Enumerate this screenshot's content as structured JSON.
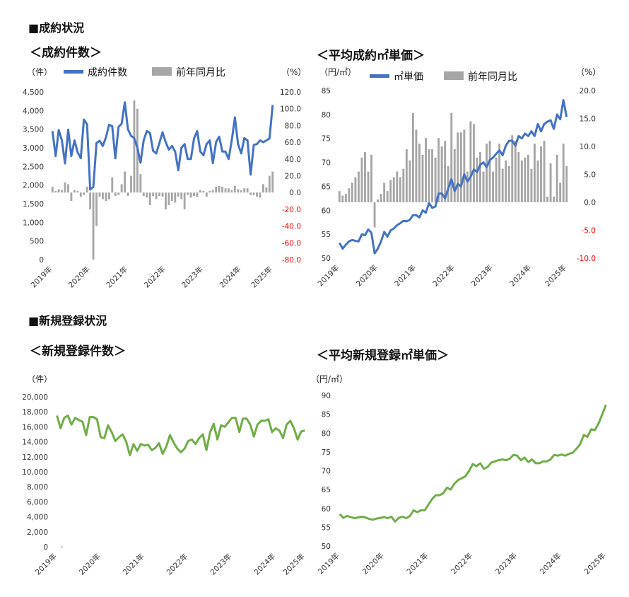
{
  "sections": {
    "contracts": "■成約状況",
    "registrations": "■新規登録状況"
  },
  "chart_data": [
    {
      "id": "c1",
      "type": "bar+line",
      "title": "＜成約件数＞",
      "left_unit": "（件）",
      "right_unit": "（%）",
      "legend": [
        "成約件数",
        "前年同月比"
      ],
      "line_color": "#4472C4",
      "bar_color": "#A6A6A6",
      "y_left": [
        0,
        4500
      ],
      "y_left_ticks": [
        "0",
        "500",
        "1,000",
        "1,500",
        "2,000",
        "2,500",
        "3,000",
        "3,500",
        "4,000",
        "4,500"
      ],
      "y_right": [
        -80,
        120
      ],
      "y_right_ticks": [
        "120.0",
        "100.0",
        "80.0",
        "60.0",
        "40.0",
        "20.0",
        "0.0",
        "-20.0",
        "-40.0",
        "-60.0",
        "-80.0"
      ],
      "negative_tick_color": "#FF0000",
      "x_labels": [
        "2019年",
        "2020年",
        "2021年",
        "2022年",
        "2023年",
        "2024年",
        "2025年"
      ],
      "start_month": 1,
      "line_values": [
        3450,
        2780,
        3480,
        3200,
        2580,
        3490,
        2780,
        3200,
        2880,
        2720,
        3760,
        3630,
        1880,
        1950,
        3130,
        3190,
        3050,
        3280,
        3620,
        3580,
        2720,
        3560,
        3650,
        4220,
        3500,
        3320,
        3260,
        3000,
        2600,
        3200,
        3450,
        3400,
        2920,
        2850,
        3130,
        3420,
        3150,
        2950,
        3050,
        2900,
        2400,
        3000,
        3100,
        2700,
        2700,
        3250,
        3450,
        2900,
        2800,
        3100,
        3200,
        2590,
        3150,
        3300,
        2900,
        2900,
        2700,
        3200,
        3820,
        3100,
        2850,
        3260,
        3200,
        2280,
        3080,
        3100,
        3200,
        3150,
        3200,
        3250,
        4150
      ],
      "bar_values": [
        7,
        2,
        4,
        3,
        12,
        10,
        -10,
        3,
        2,
        -5,
        -3,
        7,
        -20,
        -80,
        -40,
        -5,
        -8,
        -10,
        -8,
        18,
        -4,
        -3,
        10,
        25,
        -4,
        20,
        110,
        100,
        22,
        -4,
        -6,
        -15,
        -4,
        -8,
        -4,
        -5,
        -20,
        -15,
        -10,
        -12,
        -5,
        -8,
        -20,
        -3,
        -6,
        -4,
        -5,
        3,
        2,
        -5,
        2,
        3,
        7,
        8,
        7,
        5,
        5,
        3,
        8,
        4,
        3,
        5,
        5,
        -3,
        -3,
        -5,
        -6,
        10,
        6,
        20,
        25
      ]
    },
    {
      "id": "c2",
      "type": "bar+line",
      "title": "＜平均成約㎡単価＞",
      "left_unit": "（円/㎡）",
      "right_unit": "（%）",
      "legend": [
        "㎡単価",
        "前年同月比"
      ],
      "line_color": "#4472C4",
      "bar_color": "#A6A6A6",
      "y_left": [
        50,
        85
      ],
      "y_left_ticks": [
        "85",
        "80",
        "75",
        "70",
        "65",
        "60",
        "55",
        "50"
      ],
      "y_right": [
        -10,
        20
      ],
      "y_right_ticks": [
        "20.0",
        "15.0",
        "10.0",
        "5.0",
        "0.0",
        "-5.0",
        "-10.0"
      ],
      "negative_tick_color": "#FF0000",
      "x_labels": [
        "2019年",
        "2020年",
        "2021年",
        "2022年",
        "2023年",
        "2024年",
        "2025年"
      ],
      "start_month": 1,
      "line_values": [
        53.2,
        52.0,
        52.8,
        53.5,
        53.8,
        53.6,
        53.5,
        55.0,
        54.8,
        56.0,
        55.3,
        51.0,
        52.0,
        53.5,
        55.5,
        54.5,
        55.8,
        56.2,
        56.9,
        57.3,
        57.8,
        57.7,
        58.0,
        59.0,
        59.0,
        58.5,
        60.0,
        59.5,
        61.5,
        60.5,
        60.8,
        63.5,
        63.5,
        62.5,
        64.5,
        66.5,
        64.0,
        65.5,
        65.0,
        67.5,
        66.0,
        67.0,
        68.5,
        68.0,
        69.5,
        70.0,
        69.0,
        70.5,
        71.0,
        71.8,
        72.5,
        71.5,
        73.5,
        74.5,
        74.5,
        73.5,
        75.5,
        75.0,
        76.0,
        75.5,
        76.5,
        75.5,
        78.0,
        76.5,
        78.0,
        78.5,
        78.8,
        77.0,
        80.0,
        79.0,
        83.0,
        79.5
      ],
      "bar_values": [
        2.0,
        1.2,
        1.5,
        2.5,
        3.5,
        4.5,
        5.5,
        8.0,
        9.0,
        5.5,
        8.5,
        -4.5,
        0.5,
        1.5,
        3.5,
        2.0,
        4.0,
        4.5,
        5.5,
        4.5,
        6.0,
        9.5,
        7.5,
        16.0,
        13.0,
        10.5,
        8.5,
        11.5,
        9.5,
        9.5,
        8.0,
        11.5,
        10.0,
        11.0,
        6.5,
        16.0,
        9.5,
        12.5,
        12.5,
        13.0,
        5.5,
        14.5,
        14.0,
        8.0,
        9.0,
        5.5,
        10.5,
        11.0,
        5.5,
        8.0,
        10.5,
        6.0,
        7.5,
        6.5,
        12.0,
        11.0,
        9.0,
        7.5,
        8.0,
        8.5,
        6.0,
        10.5,
        7.5,
        10.0,
        11.0,
        1.0,
        7.0,
        1.0,
        8.5,
        3.5,
        10.5,
        6.5
      ],
      "unit_labels_note": ""
    },
    {
      "id": "c3",
      "type": "line",
      "title": "＜新規登録件数＞",
      "left_unit": "（件）",
      "line_color": "#70AD47",
      "y_left": [
        0,
        20000
      ],
      "y_left_ticks": [
        "20,000",
        "18,000",
        "16,000",
        "14,000",
        "12,000",
        "10,000",
        "8,000",
        "6,000",
        "4,000",
        "2,000",
        "0"
      ],
      "x_labels": [
        "2019年",
        "2020年",
        "2021年",
        "2022年",
        "2023年",
        "2024年",
        "2025年"
      ],
      "start_month": 1,
      "line_values": [
        17500,
        15800,
        17200,
        17500,
        16300,
        17200,
        16900,
        16700,
        14900,
        17300,
        17300,
        17000,
        14600,
        14500,
        16200,
        15300,
        14100,
        14600,
        15000,
        14000,
        12200,
        13700,
        12800,
        13700,
        13500,
        13600,
        12900,
        13200,
        13800,
        12400,
        13400,
        14900,
        13900,
        13100,
        12600,
        13100,
        14100,
        14300,
        13700,
        14500,
        15000,
        12900,
        15300,
        16400,
        14300,
        16200,
        16000,
        16600,
        17200,
        17200,
        15300,
        17100,
        17100,
        16300,
        14700,
        16300,
        16800,
        16800,
        17000,
        15300,
        15800,
        15500,
        14500,
        16300,
        16800,
        15800,
        14300,
        15400,
        15500
      ],
      "tick_zero_mark": "-"
    },
    {
      "id": "c4",
      "type": "line",
      "title": "＜平均新規登録㎡単価＞",
      "left_unit": "（円/㎡）",
      "line_color": "#70AD47",
      "y_left": [
        50,
        90
      ],
      "y_left_ticks": [
        "90",
        "85",
        "80",
        "75",
        "70",
        "65",
        "60",
        "55",
        "50"
      ],
      "x_labels": [
        "2019年",
        "2020年",
        "2021年",
        "2022年",
        "2023年",
        "2024年",
        "2025年"
      ],
      "start_month": 1,
      "line_values": [
        58.5,
        57.5,
        58.0,
        57.7,
        57.4,
        57.6,
        57.8,
        57.6,
        57.2,
        57.0,
        57.3,
        57.5,
        57.7,
        57.4,
        57.8,
        56.5,
        57.5,
        57.8,
        57.4,
        58.0,
        59.5,
        59.0,
        59.5,
        59.5,
        61.0,
        62.5,
        63.5,
        63.5,
        64.0,
        65.5,
        65.0,
        66.5,
        67.5,
        68.0,
        68.5,
        70.0,
        71.8,
        71.2,
        72.0,
        70.5,
        71.0,
        72.2,
        72.5,
        72.8,
        73.0,
        72.8,
        73.2,
        74.2,
        74.0,
        72.8,
        73.5,
        72.3,
        73.0,
        72.0,
        72.0,
        72.5,
        72.5,
        73.0,
        74.2,
        74.0,
        74.3,
        74.0,
        74.5,
        74.8,
        75.8,
        77.0,
        79.5,
        79.0,
        81.0,
        80.8,
        82.5,
        85.0,
        87.5
      ]
    }
  ]
}
